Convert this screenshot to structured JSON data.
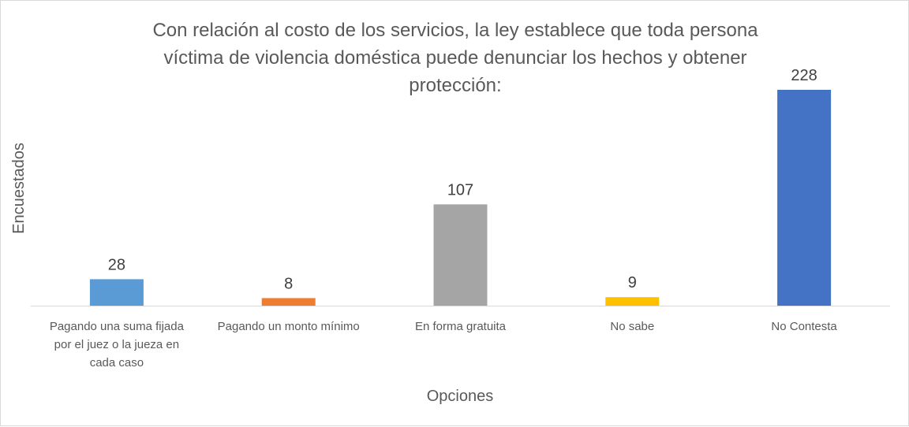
{
  "chart_data": {
    "type": "bar",
    "title_lines": [
      "Con relación al costo de los servicios, la ley establece que toda persona",
      "víctima de violencia doméstica puede denunciar los hechos y obtener",
      "protección:"
    ],
    "xlabel": "Opciones",
    "ylabel": "Encuestados",
    "categories": [
      [
        "Pagando una suma fijada",
        "por el juez o la jueza en",
        "cada caso"
      ],
      [
        "Pagando un monto mínimo"
      ],
      [
        "En forma gratuita"
      ],
      [
        "No sabe"
      ],
      [
        "No Contesta"
      ]
    ],
    "values": [
      28,
      8,
      107,
      9,
      228
    ],
    "colors": [
      "#5b9bd5",
      "#ed7d31",
      "#a5a5a5",
      "#ffc000",
      "#4472c4"
    ],
    "ylim": [
      0,
      228
    ],
    "grid": false,
    "legend": "none"
  }
}
